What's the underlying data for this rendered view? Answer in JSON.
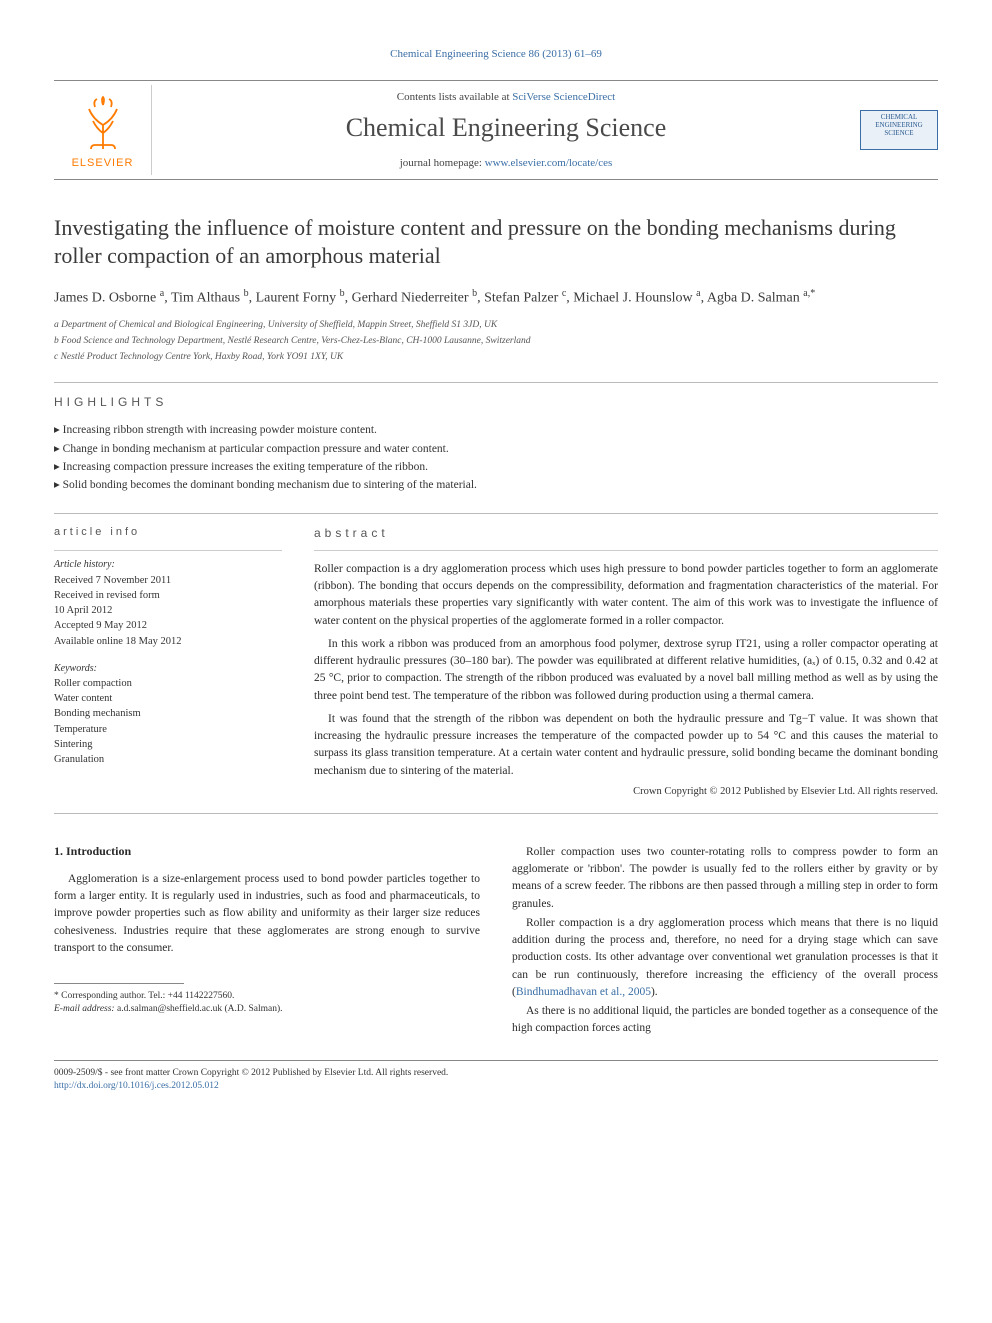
{
  "topline": "Chemical Engineering Science 86 (2013) 61–69",
  "masthead": {
    "publisher": "ELSEVIER",
    "contents_prefix": "Contents lists available at ",
    "contents_link": "SciVerse ScienceDirect",
    "journal_name": "Chemical Engineering Science",
    "homepage_prefix": "journal homepage: ",
    "homepage_url": "www.elsevier.com/locate/ces",
    "cover_title": "CHEMICAL ENGINEERING SCIENCE"
  },
  "article": {
    "title": "Investigating the influence of moisture content and pressure on the bonding mechanisms during roller compaction of an amorphous material",
    "authors_html": "James D. Osborne <span class='sup'>a</span>, Tim Althaus <span class='sup'>b</span>, Laurent Forny <span class='sup'>b</span>, Gerhard Niederreiter <span class='sup'>b</span>, Stefan Palzer <span class='sup'>c</span>, Michael J. Hounslow <span class='sup'>a</span>, Agba D. Salman <span class='sup'>a,*</span>",
    "affiliations": [
      "a Department of Chemical and Biological Engineering, University of Sheffield, Mappin Street, Sheffield S1 3JD, UK",
      "b Food Science and Technology Department, Nestlé Research Centre, Vers-Chez-Les-Blanc, CH-1000 Lausanne, Switzerland",
      "c Nestlé Product Technology Centre York, Haxby Road, York YO91 1XY, UK"
    ]
  },
  "highlights": {
    "heading": "HIGHLIGHTS",
    "items": [
      "Increasing ribbon strength with increasing powder moisture content.",
      "Change in bonding mechanism at particular compaction pressure and water content.",
      "Increasing compaction pressure increases the exiting temperature of the ribbon.",
      "Solid bonding becomes the dominant bonding mechanism due to sintering of the material."
    ]
  },
  "article_info": {
    "heading": "article info",
    "history_label": "Article history:",
    "history": [
      "Received 7 November 2011",
      "Received in revised form",
      "10 April 2012",
      "Accepted 9 May 2012",
      "Available online 18 May 2012"
    ],
    "keywords_label": "Keywords:",
    "keywords": [
      "Roller compaction",
      "Water content",
      "Bonding mechanism",
      "Temperature",
      "Sintering",
      "Granulation"
    ]
  },
  "abstract": {
    "heading": "abstract",
    "paragraphs": [
      "Roller compaction is a dry agglomeration process which uses high pressure to bond powder particles together to form an agglomerate (ribbon). The bonding that occurs depends on the compressibility, deformation and fragmentation characteristics of the material. For amorphous materials these properties vary significantly with water content. The aim of this work was to investigate the influence of water content on the physical properties of the agglomerate formed in a roller compactor.",
      "In this work a ribbon was produced from an amorphous food polymer, dextrose syrup IT21, using a roller compactor operating at different hydraulic pressures (30–180 bar). The powder was equilibrated at different relative humidities, (aₓ) of 0.15, 0.32 and 0.42 at 25 °C, prior to compaction. The strength of the ribbon produced was evaluated by a novel ball milling method as well as by using the three point bend test. The temperature of the ribbon was followed during production using a thermal camera.",
      "It was found that the strength of the ribbon was dependent on both the hydraulic pressure and Tg−T value. It was shown that increasing the hydraulic pressure increases the temperature of the compacted powder up to 54 °C and this causes the material to surpass its glass transition temperature. At a certain water content and hydraulic pressure, solid bonding became the dominant bonding mechanism due to sintering of the material."
    ],
    "copyright": "Crown Copyright © 2012 Published by Elsevier Ltd. All rights reserved."
  },
  "body": {
    "section_heading": "1.  Introduction",
    "left_paragraphs": [
      "Agglomeration is a size-enlargement process used to bond powder particles together to form a larger entity. It is regularly used in industries, such as food and pharmaceuticals, to improve powder properties such as flow ability and uniformity as their larger size reduces cohesiveness. Industries require that these agglomerates are strong enough to survive transport to the consumer."
    ],
    "right_paragraphs": [
      "Roller compaction uses two counter-rotating rolls to compress powder to form an agglomerate or 'ribbon'. The powder is usually fed to the rollers either by gravity or by means of a screw feeder. The ribbons are then passed through a milling step in order to form granules.",
      "Roller compaction is a dry agglomeration process which means that there is no liquid addition during the process and, therefore, no need for a drying stage which can save production costs. Its other advantage over conventional wet granulation processes is that it can be run continuously, therefore increasing the efficiency of the overall process (Bindhumadhavan et al., 2005).",
      "As there is no additional liquid, the particles are bonded together as a consequence of the high compaction forces acting"
    ]
  },
  "footnote": {
    "corresponding": "* Corresponding author. Tel.: +44 1142227560.",
    "email_label": "E-mail address:",
    "email": "a.d.salman@sheffield.ac.uk (A.D. Salman)."
  },
  "footer": {
    "line1": "0009-2509/$ - see front matter Crown Copyright © 2012 Published by Elsevier Ltd. All rights reserved.",
    "doi": "http://dx.doi.org/10.1016/j.ces.2012.05.012"
  },
  "colors": {
    "link": "#3a6ea5",
    "publisher": "#ff7b00",
    "text": "#2a2a2a",
    "rule": "#bbbbbb",
    "background": "#ffffff"
  },
  "typography": {
    "title_fontsize": 22,
    "journal_fontsize": 26,
    "body_fontsize": 11.5,
    "affil_fontsize": 9.5,
    "heading_letterspacing": 4
  }
}
